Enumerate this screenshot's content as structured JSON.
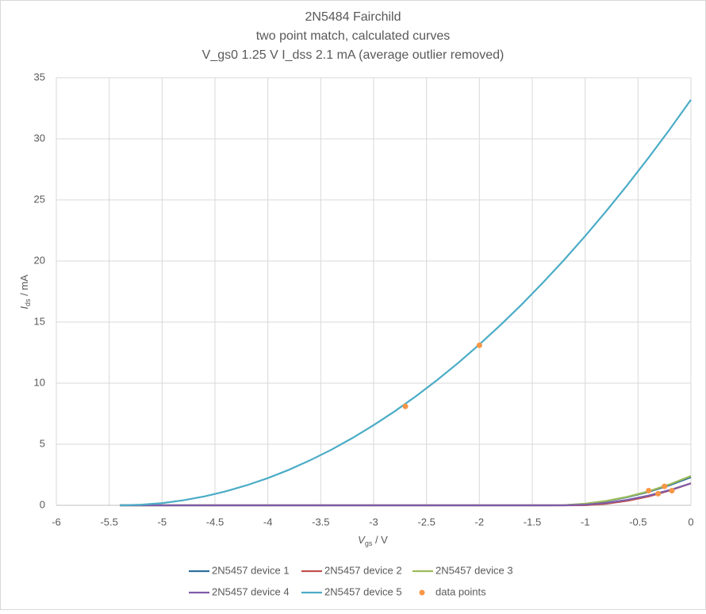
{
  "chart_data": {
    "type": "line",
    "title": [
      "2N5484 Fairchild",
      "two point match, calculated curves",
      "V_gs0 1.25 V I_dss 2.1 mA (average outlier removed)"
    ],
    "xlabel": {
      "var": "V",
      "sub": "gs",
      "unit": " / V"
    },
    "ylabel": {
      "var": "I",
      "sub": "ds",
      "unit": " / mA"
    },
    "x": [
      -5.4,
      -5.2,
      -5.0,
      -4.8,
      -4.6,
      -4.4,
      -4.2,
      -4.0,
      -3.8,
      -3.6,
      -3.4,
      -3.2,
      -3.0,
      -2.8,
      -2.6,
      -2.4,
      -2.2,
      -2.0,
      -1.8,
      -1.6,
      -1.4,
      -1.2,
      -1.0,
      -0.8,
      -0.6,
      -0.4,
      -0.2,
      0
    ],
    "series": [
      {
        "name": "2N5457 device 1",
        "color": "#2e6f9e",
        "values": [
          0,
          0,
          0,
          0,
          0,
          0,
          0,
          0,
          0,
          0,
          0,
          0,
          0,
          0,
          0,
          0,
          0,
          0,
          0,
          0,
          0,
          0.01,
          0.12,
          0.34,
          0.67,
          1.1,
          1.65,
          2.3
        ]
      },
      {
        "name": "2N5457 device 2",
        "color": "#c0504d",
        "values": [
          0,
          0,
          0,
          0,
          0,
          0,
          0,
          0,
          0,
          0,
          0,
          0,
          0,
          0,
          0,
          0,
          0,
          0,
          0,
          0,
          0,
          0,
          0.01,
          0.13,
          0.37,
          0.73,
          1.21,
          1.8
        ]
      },
      {
        "name": "2N5457 device 3",
        "color": "#9bbb59",
        "values": [
          0,
          0,
          0,
          0,
          0,
          0,
          0,
          0,
          0,
          0,
          0,
          0,
          0,
          0,
          0,
          0,
          0,
          0,
          0,
          0,
          0,
          0.01,
          0.13,
          0.36,
          0.7,
          1.15,
          1.72,
          2.4
        ]
      },
      {
        "name": "2N5457 device 4",
        "color": "#7f5ca8",
        "values": [
          0,
          0,
          0,
          0,
          0,
          0,
          0,
          0,
          0,
          0,
          0,
          0,
          0,
          0,
          0,
          0,
          0,
          0,
          0,
          0,
          0,
          0,
          0.05,
          0.2,
          0.45,
          0.8,
          1.25,
          1.8
        ]
      },
      {
        "name": "2N5457 device 5",
        "color": "#4bacc6",
        "values": [
          0,
          0.05,
          0.18,
          0.41,
          0.73,
          1.14,
          1.64,
          2.23,
          2.91,
          3.69,
          4.55,
          5.51,
          6.56,
          7.7,
          8.93,
          10.25,
          11.66,
          13.17,
          14.76,
          16.44,
          18.22,
          20.08,
          22.04,
          24.09,
          26.23,
          28.46,
          30.78,
          33.2
        ]
      },
      {
        "name": "data points",
        "color": "#f79646",
        "marker": "circle",
        "x": [
          -2.7,
          -2.0,
          -0.4,
          -0.31,
          -0.25,
          -0.18
        ],
        "values": [
          8.1,
          13.1,
          1.2,
          0.95,
          1.55,
          1.2
        ]
      }
    ],
    "xlim": [
      -6,
      0
    ],
    "xticks": [
      -6,
      -5.5,
      -5,
      -4.5,
      -4,
      -3.5,
      -3,
      -2.5,
      -2,
      -1.5,
      -1,
      -0.5,
      0
    ],
    "ylim": [
      0,
      35
    ],
    "yticks": [
      0,
      5,
      10,
      15,
      20,
      25,
      30,
      35
    ],
    "grid": true,
    "legend": "bottom"
  }
}
